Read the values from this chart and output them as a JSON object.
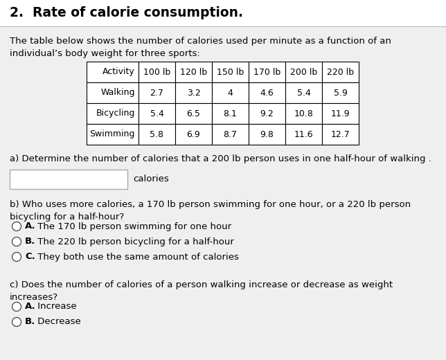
{
  "title": "2.  Rate of calorie consumption.",
  "intro_line1": "The table below shows the number of calories used per minute as a function of an",
  "intro_line2": "individual’s body weight for three sports:",
  "table_headers": [
    "Activity",
    "100 lb",
    "120 lb",
    "150 lb",
    "170 lb",
    "200 lb",
    "220 lb"
  ],
  "table_rows": [
    [
      "Walking",
      "2.7",
      "3.2",
      "4",
      "4.6",
      "5.4",
      "5.9"
    ],
    [
      "Bicycling",
      "5.4",
      "6.5",
      "8.1",
      "9.2",
      "10.8",
      "11.9"
    ],
    [
      "Swimming",
      "5.8",
      "6.9",
      "8.7",
      "9.8",
      "11.6",
      "12.7"
    ]
  ],
  "question_a": "a) Determine the number of calories that a 200 lb person uses in one half-hour of walking .",
  "question_a_suffix": "calories",
  "question_b_line1": "b) Who uses more calories, a 170 lb person swimming for one hour, or a 220 lb person",
  "question_b_line2": "bicycling for a half-hour?",
  "question_b_options": [
    [
      "A.",
      " The 170 lb person swimming for one hour"
    ],
    [
      "B.",
      " The 220 lb person bicycling for a half-hour"
    ],
    [
      "C.",
      " They both use the same amount of calories"
    ]
  ],
  "question_c_line1": "c) Does the number of calories of a person walking increase or decrease as weight",
  "question_c_line2": "increases?",
  "question_c_options": [
    [
      "A.",
      " Increase"
    ],
    [
      "B.",
      " Decrease"
    ]
  ],
  "bg_color": "#e8e8e8",
  "panel_color": "#e8e8e8",
  "white_panel_color": "#efefef",
  "title_color": "#000000",
  "text_color": "#000000",
  "table_border_color": "#000000",
  "input_box_color": "#ffffff"
}
